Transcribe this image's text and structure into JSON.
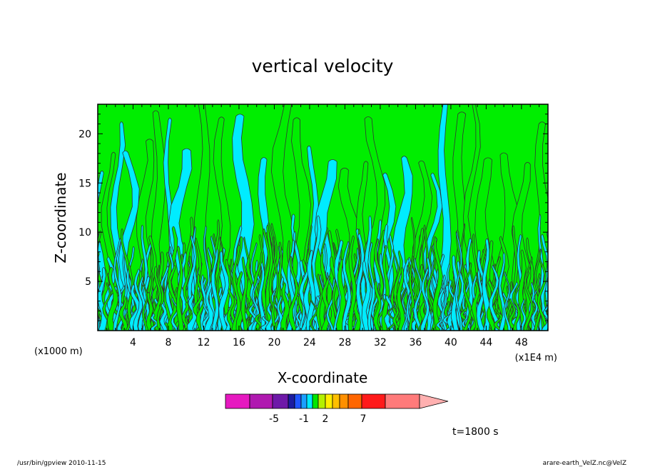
{
  "chart_data": {
    "type": "heatmap",
    "title": "vertical velocity",
    "xlabel": "X-coordinate",
    "ylabel": "Z-coordinate",
    "x_unit": "(x1E4 m)",
    "y_unit": "(x1000 m)",
    "xlim": [
      0,
      51
    ],
    "ylim": [
      0,
      23
    ],
    "x_ticks": [
      4,
      8,
      12,
      16,
      20,
      24,
      28,
      32,
      36,
      40,
      44,
      48
    ],
    "y_ticks": [
      5,
      10,
      15,
      20
    ],
    "colorbar": {
      "levels": [
        -7,
        -6,
        -5,
        -4,
        -3,
        -2,
        -1,
        0,
        1,
        2,
        3,
        4,
        5,
        6,
        7,
        8
      ],
      "labels": [
        "-5",
        "-1",
        "2",
        "7"
      ],
      "label_values": [
        -5,
        -1,
        2,
        7
      ],
      "colors": [
        "#e619c0",
        "#b019b0",
        "#6e19a8",
        "#1c1ca0",
        "#1f55ff",
        "#1aa0ff",
        "#00eaff",
        "#00e600",
        "#b4f000",
        "#ffee00",
        "#ffc000",
        "#ff9000",
        "#ff6600",
        "#ff1a1a",
        "#ff7a7a",
        "#ffb0b0"
      ],
      "triangle_color": "#ffb0b0"
    },
    "field_colors": {
      "negative": "#00ecff",
      "positive": "#00ee00",
      "contour": "#333333"
    },
    "time_label": "t=1800 s"
  },
  "footer": {
    "left": "/usr/bin/gpview   2010-11-15",
    "right": "arare-earth_VelZ.nc@VelZ"
  }
}
